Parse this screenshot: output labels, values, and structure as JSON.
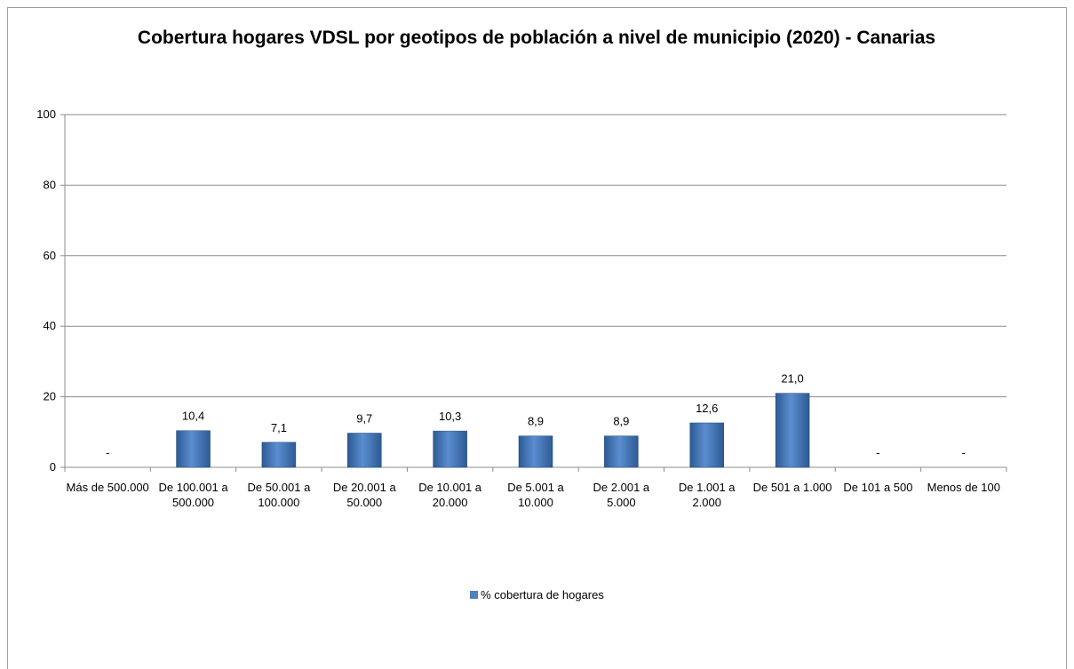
{
  "chart_data": {
    "type": "bar",
    "title": "Cobertura hogares VDSL por geotipos de población a nivel de municipio (2020) - Canarias",
    "categories": [
      "Más de 500.000",
      "De 100.001 a 500.000",
      "De 50.001 a 100.000",
      "De 20.001 a 50.000",
      "De 10.001 a 20.000",
      "De 5.001 a 10.000",
      "De 2.001 a 5.000",
      "De 1.001 a 2.000",
      "De 501 a 1.000",
      "De 101 a 500",
      "Menos de 100"
    ],
    "series": [
      {
        "name": "% cobertura de hogares",
        "color": "#4f81bd",
        "values": [
          null,
          10.4,
          7.1,
          9.7,
          10.3,
          8.9,
          8.9,
          12.6,
          21.0,
          null,
          null
        ],
        "value_labels": [
          "-",
          "10,4",
          "7,1",
          "9,7",
          "10,3",
          "8,9",
          "8,9",
          "12,6",
          "21,0",
          "-",
          "-"
        ]
      }
    ],
    "ylim": [
      0,
      100
    ],
    "yticks": [
      0,
      20,
      40,
      60,
      80,
      100
    ],
    "grid": true,
    "legend": "bottom"
  }
}
